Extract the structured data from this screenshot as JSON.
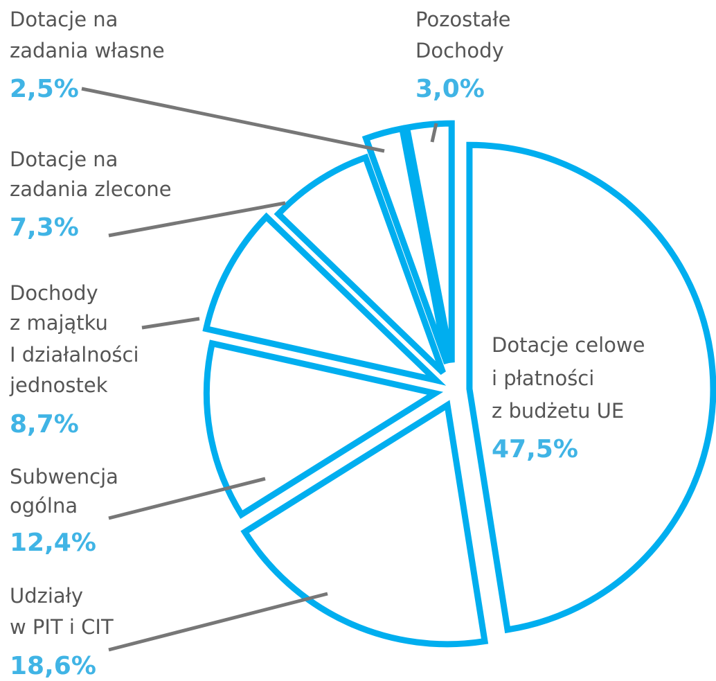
{
  "chart_data": {
    "type": "pie",
    "categories": [
      [
        "Dotacje celowe",
        "i płatności",
        "z budżetu UE"
      ],
      [
        "Udziały",
        "w PIT i CIT"
      ],
      [
        "Subwencja",
        "ogólna"
      ],
      [
        "Dochody",
        "z majątku",
        "I działalności",
        "jednostek"
      ],
      [
        "Dotacje na",
        "zadania zlecone"
      ],
      [
        "Dotacje na",
        "zadania własne"
      ],
      [
        "Pozostałe",
        "Dochody"
      ]
    ],
    "values": [
      47.5,
      18.6,
      12.4,
      8.7,
      7.3,
      2.5,
      3.0
    ],
    "value_labels": [
      "47,5%",
      "18,6%",
      "12,4%",
      "8,7%",
      "7,3%",
      "2,5%",
      "3,0%"
    ],
    "color": "#00aeef"
  }
}
